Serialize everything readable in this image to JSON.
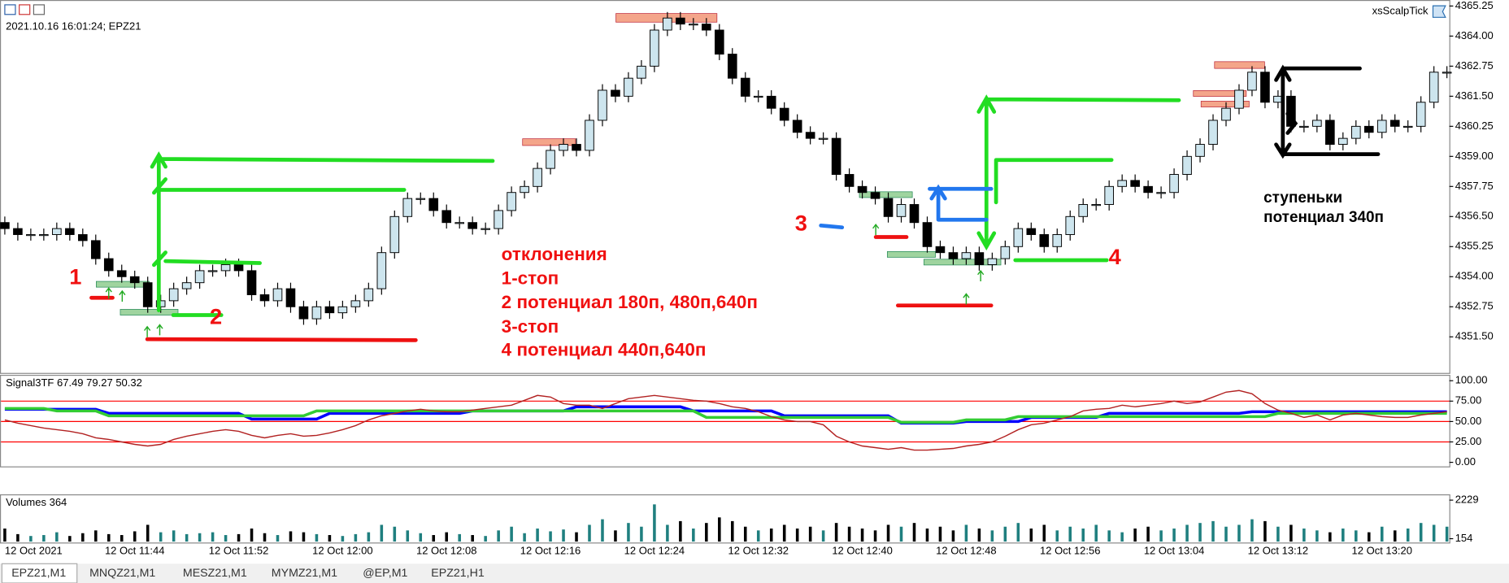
{
  "header": {
    "info": "2021.10.16 16:01:24; EPZ21",
    "expert": "xsScalpTick"
  },
  "tabs": [
    "EPZ21,M1",
    "MNQZ21,M1",
    "MESZ21,M1",
    "MYMZ21,M1",
    "@EP,M1",
    "EPZ21,H1"
  ],
  "annotations": {
    "labels": [
      "1",
      "2",
      "3",
      "4"
    ],
    "notes": [
      "отклонения",
      "1-стоп",
      "2 потенциал 180п, 480п,640п",
      "3-стоп",
      "4 потенциал 440п,640п"
    ],
    "steps": [
      "ступеньки",
      "потенциал 340п"
    ]
  },
  "chart_data": [
    {
      "type": "candlestick",
      "categories": [
        "12 Oct 2021",
        null,
        null,
        null,
        null,
        null,
        null,
        null,
        null,
        null,
        "12 Oct 11:44",
        null,
        null,
        null,
        null,
        null,
        null,
        null,
        "12 Oct 11:52",
        null,
        null,
        null,
        null,
        null,
        null,
        null,
        "12 Oct 12:00",
        null,
        null,
        null,
        null,
        null,
        null,
        null,
        "12 Oct 12:08",
        null,
        null,
        null,
        null,
        null,
        null,
        null,
        "12 Oct 12:16",
        null,
        null,
        null,
        null,
        null,
        null,
        null,
        "12 Oct 12:24",
        null,
        null,
        null,
        null,
        null,
        null,
        null,
        "12 Oct 12:32",
        null,
        null,
        null,
        null,
        null,
        null,
        null,
        "12 Oct 12:40",
        null,
        null,
        null,
        null,
        null,
        null,
        null,
        "12 Oct 12:48",
        null,
        null,
        null,
        null,
        null,
        null,
        null,
        "12 Oct 12:56",
        null,
        null,
        null,
        null,
        null,
        null,
        null,
        "12 Oct 13:04",
        null,
        null,
        null,
        null,
        null,
        null,
        null,
        "12 Oct 13:12",
        null,
        null,
        null,
        null,
        null,
        null,
        null,
        "12 Oct 13:20",
        null,
        null,
        null,
        null,
        null
      ],
      "open": [
        4356.25,
        4356.0,
        4355.75,
        4355.75,
        4355.75,
        4356.0,
        4355.75,
        4355.5,
        4354.75,
        4354.25,
        4354.0,
        4353.75,
        4352.75,
        4353.0,
        4353.5,
        4353.75,
        4354.25,
        4354.25,
        4354.5,
        4354.25,
        4353.25,
        4353.0,
        4353.5,
        4352.75,
        4352.25,
        4352.75,
        4352.5,
        4352.75,
        4353.0,
        4353.5,
        4355.0,
        4356.5,
        4357.25,
        4357.25,
        4356.75,
        4356.25,
        4356.25,
        4356.0,
        4356.0,
        4356.75,
        4357.5,
        4357.75,
        4358.5,
        4359.25,
        4359.5,
        4359.25,
        4360.5,
        4361.75,
        4361.5,
        4362.25,
        4362.75,
        4364.25,
        4364.75,
        4364.5,
        4364.5,
        4364.25,
        4363.25,
        4362.25,
        4361.5,
        4361.5,
        4361.0,
        4360.5,
        4360.0,
        4359.75,
        4359.75,
        4358.25,
        4357.75,
        4357.5,
        4357.25,
        4356.5,
        4357.0,
        4356.25,
        4355.25,
        4355.0,
        4354.75,
        4355.0,
        4354.5,
        4354.75,
        4355.25,
        4356.0,
        4355.75,
        4355.25,
        4355.75,
        4356.5,
        4357.0,
        4357.0,
        4357.75,
        4358.0,
        4357.75,
        4357.5,
        4357.5,
        4358.25,
        4359.0,
        4359.5,
        4360.5,
        4361.0,
        4361.75,
        4362.5,
        4361.25,
        4361.5,
        4360.25,
        4360.25,
        4360.5,
        4359.5,
        4359.75,
        4360.25,
        4360.0,
        4360.5,
        4360.25,
        4360.25,
        4361.25,
        4362.5
      ],
      "high": [
        4356.5,
        4356.25,
        4356.0,
        4356.0,
        4356.25,
        4356.25,
        4356.0,
        4355.75,
        4355.0,
        4354.5,
        4354.25,
        4354.0,
        4353.25,
        4353.75,
        4354.0,
        4354.5,
        4354.5,
        4354.75,
        4354.75,
        4354.5,
        4353.5,
        4353.75,
        4353.75,
        4353.0,
        4353.0,
        4353.0,
        4353.0,
        4353.25,
        4353.75,
        4355.25,
        4356.75,
        4357.5,
        4357.5,
        4357.5,
        4357.0,
        4356.5,
        4356.5,
        4356.25,
        4357.0,
        4357.75,
        4358.0,
        4358.75,
        4359.5,
        4359.75,
        4359.75,
        4360.75,
        4362.0,
        4362.0,
        4362.5,
        4363.0,
        4364.5,
        4365.0,
        4365.0,
        4364.75,
        4364.75,
        4364.5,
        4363.5,
        4362.5,
        4361.75,
        4361.75,
        4361.25,
        4360.75,
        4360.25,
        4360.0,
        4360.0,
        4358.5,
        4358.0,
        4357.75,
        4357.5,
        4357.25,
        4357.25,
        4356.5,
        4355.5,
        4355.25,
        4355.25,
        4355.25,
        4355.0,
        4355.5,
        4356.25,
        4356.25,
        4356.0,
        4356.0,
        4356.75,
        4357.25,
        4357.25,
        4358.0,
        4358.25,
        4358.25,
        4358.0,
        4357.75,
        4358.5,
        4359.25,
        4359.75,
        4360.75,
        4361.25,
        4362.0,
        4362.75,
        4362.75,
        4361.75,
        4361.75,
        4360.5,
        4360.75,
        4360.75,
        4360.0,
        4360.5,
        4360.5,
        4360.75,
        4360.75,
        4360.5,
        4361.5,
        4362.75,
        4362.75
      ],
      "low": [
        4355.75,
        4355.5,
        4355.5,
        4355.5,
        4355.5,
        4355.5,
        4355.25,
        4354.5,
        4354.0,
        4353.75,
        4353.5,
        4352.5,
        4352.5,
        4352.75,
        4353.25,
        4353.5,
        4354.0,
        4354.0,
        4354.0,
        4353.0,
        4352.75,
        4352.75,
        4352.5,
        4352.0,
        4352.0,
        4352.25,
        4352.25,
        4352.5,
        4352.75,
        4353.25,
        4354.75,
        4356.25,
        4357.0,
        4356.5,
        4356.0,
        4356.0,
        4355.75,
        4355.75,
        4355.75,
        4356.5,
        4357.25,
        4357.5,
        4358.25,
        4359.0,
        4359.0,
        4359.0,
        4360.25,
        4361.25,
        4361.25,
        4362.0,
        4362.5,
        4364.0,
        4364.25,
        4364.25,
        4364.0,
        4363.0,
        4362.0,
        4361.25,
        4361.25,
        4360.75,
        4360.25,
        4359.75,
        4359.5,
        4359.5,
        4358.0,
        4357.5,
        4357.25,
        4357.0,
        4356.25,
        4356.25,
        4356.0,
        4355.0,
        4354.75,
        4354.5,
        4354.5,
        4354.25,
        4354.25,
        4354.5,
        4355.0,
        4355.5,
        4355.0,
        4355.0,
        4355.5,
        4356.25,
        4356.75,
        4356.75,
        4357.5,
        4357.5,
        4357.25,
        4357.25,
        4357.25,
        4358.0,
        4358.75,
        4359.25,
        4360.25,
        4360.75,
        4361.5,
        4361.0,
        4361.0,
        4360.0,
        4360.0,
        4360.0,
        4359.25,
        4359.25,
        4359.5,
        4359.75,
        4359.75,
        4360.0,
        4360.0,
        4360.0,
        4361.0,
        4362.25
      ],
      "close": [
        4356.0,
        4355.75,
        4355.75,
        4355.75,
        4356.0,
        4355.75,
        4355.5,
        4354.75,
        4354.25,
        4354.0,
        4353.75,
        4352.75,
        4353.0,
        4353.5,
        4353.75,
        4354.25,
        4354.25,
        4354.5,
        4354.25,
        4353.25,
        4353.0,
        4353.5,
        4352.75,
        4352.25,
        4352.75,
        4352.5,
        4352.75,
        4353.0,
        4353.5,
        4355.0,
        4356.5,
        4357.25,
        4357.25,
        4356.75,
        4356.25,
        4356.25,
        4356.0,
        4356.0,
        4356.75,
        4357.5,
        4357.75,
        4358.5,
        4359.25,
        4359.5,
        4359.25,
        4360.5,
        4361.75,
        4361.5,
        4362.25,
        4362.75,
        4364.25,
        4364.75,
        4364.5,
        4364.5,
        4364.25,
        4363.25,
        4362.25,
        4361.5,
        4361.5,
        4361.0,
        4360.5,
        4360.0,
        4359.75,
        4359.75,
        4358.25,
        4357.75,
        4357.5,
        4357.25,
        4356.5,
        4357.0,
        4356.25,
        4355.25,
        4355.0,
        4354.75,
        4355.0,
        4354.5,
        4354.75,
        4355.25,
        4356.0,
        4355.75,
        4355.25,
        4355.75,
        4356.5,
        4357.0,
        4357.0,
        4357.75,
        4358.0,
        4357.75,
        4357.5,
        4357.5,
        4358.25,
        4359.0,
        4359.5,
        4360.5,
        4361.0,
        4361.75,
        4362.5,
        4361.25,
        4361.5,
        4360.25,
        4360.25,
        4360.5,
        4359.5,
        4359.75,
        4360.25,
        4360.0,
        4360.5,
        4360.25,
        4360.25,
        4361.25,
        4362.5,
        4362.5
      ],
      "up_color": "#cde5ee",
      "down_color": "#000000",
      "ylim": [
        4350,
        4365.5
      ],
      "yticks": [
        4365.25,
        {
          "value": 4364,
          "label": "4364.00"
        },
        4362.75,
        {
          "value": 4361.5,
          "label": "4361.50"
        },
        4360.25,
        {
          "value": 4359,
          "label": "4359.00"
        },
        4357.75,
        {
          "value": 4356.5,
          "label": "4356.50"
        },
        4355.25,
        {
          "value": 4354,
          "label": "4354.00"
        },
        4352.75,
        {
          "value": 4351.5,
          "label": "4351.50"
        }
      ]
    },
    {
      "type": "line",
      "title": "Signal3TF 67.49 79.27 50.32",
      "series": [
        {
          "color": "#0000ff",
          "values": [
            65,
            65,
            65,
            65,
            65,
            65,
            65,
            65,
            60,
            60,
            60,
            60,
            60,
            60,
            60,
            60,
            60,
            60,
            60,
            53,
            53,
            53,
            53,
            53,
            53,
            60,
            60,
            60,
            60,
            60,
            60,
            60,
            60,
            60,
            60,
            60,
            63,
            63,
            63,
            63,
            63,
            63,
            63,
            63,
            68,
            68,
            68,
            68,
            68,
            68,
            68,
            68,
            68,
            63,
            63,
            63,
            63,
            63,
            63,
            63,
            57,
            57,
            57,
            57,
            57,
            57,
            57,
            57,
            57,
            48,
            48,
            48,
            48,
            48,
            50,
            50,
            50,
            50,
            50,
            55,
            55,
            55,
            55,
            55,
            55,
            60,
            60,
            60,
            60,
            60,
            60,
            60,
            60,
            60,
            60,
            60,
            62,
            62,
            62,
            62,
            62,
            62,
            62,
            62,
            62,
            62,
            62,
            62,
            62,
            62,
            62,
            62
          ]
        },
        {
          "color": "#33cc33",
          "values": [
            66,
            66,
            66,
            66,
            63,
            63,
            63,
            63,
            57,
            57,
            57,
            57,
            57,
            57,
            57,
            57,
            57,
            57,
            57,
            57,
            57,
            57,
            57,
            57,
            63,
            63,
            63,
            63,
            63,
            63,
            63,
            63,
            63,
            63,
            63,
            63,
            63,
            63,
            63,
            63,
            63,
            63,
            63,
            63,
            63,
            63,
            63,
            63,
            63,
            63,
            63,
            63,
            63,
            63,
            55,
            55,
            55,
            55,
            55,
            55,
            55,
            55,
            55,
            55,
            55,
            55,
            55,
            55,
            55,
            49,
            49,
            49,
            49,
            49,
            52,
            52,
            52,
            52,
            56,
            56,
            56,
            56,
            56,
            56,
            56,
            56,
            56,
            56,
            56,
            56,
            56,
            56,
            56,
            56,
            56,
            56,
            56,
            56,
            60,
            60,
            60,
            60,
            60,
            60,
            60,
            60,
            60,
            60,
            60,
            60,
            60,
            60
          ]
        },
        {
          "color": "#b22222",
          "values": [
            52,
            48,
            45,
            42,
            40,
            38,
            35,
            30,
            28,
            25,
            22,
            20,
            22,
            28,
            32,
            35,
            38,
            40,
            38,
            33,
            30,
            33,
            35,
            32,
            33,
            36,
            40,
            45,
            52,
            57,
            60,
            63,
            65,
            63,
            62,
            62,
            64,
            66,
            68,
            70,
            76,
            82,
            80,
            72,
            70,
            70,
            66,
            72,
            78,
            80,
            82,
            80,
            78,
            76,
            75,
            72,
            68,
            66,
            62,
            56,
            52,
            50,
            50,
            46,
            32,
            25,
            20,
            18,
            16,
            18,
            15,
            15,
            16,
            17,
            20,
            22,
            25,
            32,
            40,
            46,
            48,
            52,
            56,
            63,
            65,
            66,
            70,
            68,
            70,
            72,
            75,
            72,
            74,
            80,
            86,
            88,
            84,
            72,
            64,
            60,
            55,
            58,
            52,
            58,
            60,
            58,
            56,
            55,
            55,
            58,
            60,
            62
          ]
        }
      ],
      "levels": [
        75,
        50,
        25
      ],
      "level_color": "#ff0000",
      "ylim": [
        -5,
        106
      ],
      "yticks": [
        {
          "value": 100,
          "label": "100.00"
        },
        {
          "value": 75,
          "label": "75.00"
        },
        {
          "value": 50,
          "label": "50.00"
        },
        {
          "value": 25,
          "label": "25.00"
        },
        {
          "value": 0,
          "label": "0.00"
        }
      ]
    },
    {
      "type": "bar",
      "title": "Volumes 364",
      "values": [
        700,
        400,
        300,
        350,
        500,
        300,
        450,
        600,
        400,
        350,
        550,
        900,
        500,
        600,
        400,
        450,
        500,
        350,
        400,
        700,
        450,
        350,
        550,
        500,
        400,
        350,
        300,
        400,
        500,
        900,
        800,
        600,
        450,
        350,
        500,
        400,
        350,
        300,
        600,
        800,
        450,
        700,
        550,
        650,
        500,
        900,
        1200,
        600,
        1000,
        800,
        2000,
        900,
        1100,
        700,
        1000,
        1300,
        1100,
        800,
        600,
        700,
        900,
        700,
        800,
        600,
        1000,
        800,
        700,
        600,
        900,
        800,
        1000,
        700,
        800,
        600,
        900,
        700,
        600,
        800,
        1000,
        700,
        900,
        600,
        800,
        700,
        900,
        600,
        500,
        700,
        800,
        600,
        700,
        900,
        1000,
        1100,
        800,
        900,
        1200,
        1100,
        800,
        900,
        700,
        600,
        500,
        700,
        600,
        500,
        800,
        600,
        700,
        1000,
        900,
        800
      ],
      "up_color": "#1f7f7f",
      "down_color": "#000000",
      "ylim": [
        0,
        2229
      ],
      "yticks": [
        2229,
        154
      ]
    }
  ]
}
